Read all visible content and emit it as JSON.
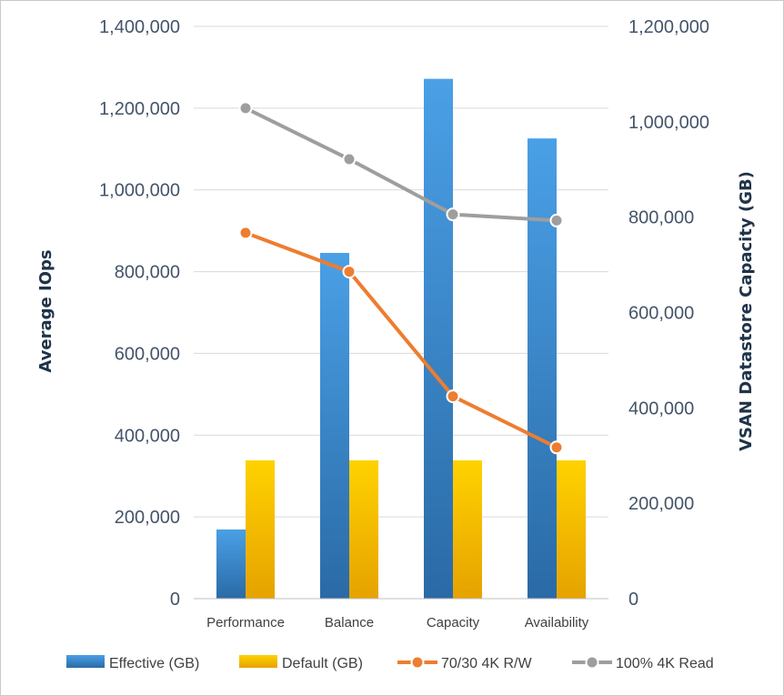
{
  "chart_data": {
    "type": "bar",
    "categories": [
      "Performance",
      "Balance",
      "Capacity",
      "Availability"
    ],
    "series": [
      {
        "name": "Effective (GB)",
        "kind": "bar",
        "axis": "right",
        "color": "#3a87cf",
        "values": [
          145000,
          725000,
          1090000,
          965000
        ]
      },
      {
        "name": "Default (GB)",
        "kind": "bar",
        "axis": "right",
        "color": "#f2b600",
        "values": [
          290000,
          290000,
          290000,
          290000
        ]
      },
      {
        "name": "70/30 4K R/W",
        "kind": "line",
        "axis": "left",
        "color": "#ed7d31",
        "values": [
          895000,
          800000,
          495000,
          370000
        ]
      },
      {
        "name": "100% 4K Read",
        "kind": "line",
        "axis": "left",
        "color": "#9e9e9e",
        "values": [
          1200000,
          1075000,
          940000,
          925000
        ]
      }
    ],
    "left_axis": {
      "label": "Average IOps",
      "min": 0,
      "max": 1400000,
      "step": 200000,
      "ticks": [
        "0",
        "200,000",
        "400,000",
        "600,000",
        "800,000",
        "1,000,000",
        "1,200,000",
        "1,400,000"
      ]
    },
    "right_axis": {
      "label": "VSAN Datastore Capacity (GB)",
      "min": 0,
      "max": 1200000,
      "step": 200000,
      "ticks": [
        "0",
        "200,000",
        "400,000",
        "600,000",
        "800,000",
        "1,000,000",
        "1,200,000"
      ]
    },
    "grid": true,
    "legend_position": "bottom"
  }
}
